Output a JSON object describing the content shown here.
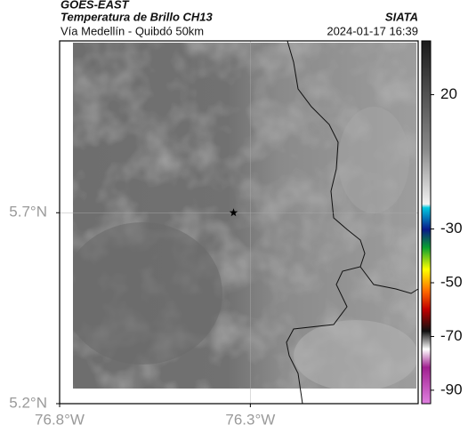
{
  "header": {
    "product": "GOES-EAST",
    "title": "Temperatura de Brillo CH13",
    "subtitle": "Vía Medellín - Quibdó 50km",
    "source": "SIATA",
    "datetime": "2024-01-17 16:39"
  },
  "map": {
    "xlim": [
      -76.8,
      -75.86
    ],
    "ylim": [
      5.2,
      6.15
    ],
    "xticks": [
      {
        "value": -76.8,
        "label": "76.8°W"
      },
      {
        "value": -76.3,
        "label": "76.3°W"
      }
    ],
    "yticks": [
      {
        "value": 5.2,
        "label": "5.2°N"
      },
      {
        "value": 5.7,
        "label": "5.7°N"
      }
    ],
    "grid": true,
    "marker": {
      "lon": -76.344,
      "lat": 5.7
    }
  },
  "colorbar": {
    "lim": [
      40,
      -95
    ],
    "ticks": [
      20,
      -30,
      -50,
      -70,
      -90
    ]
  }
}
